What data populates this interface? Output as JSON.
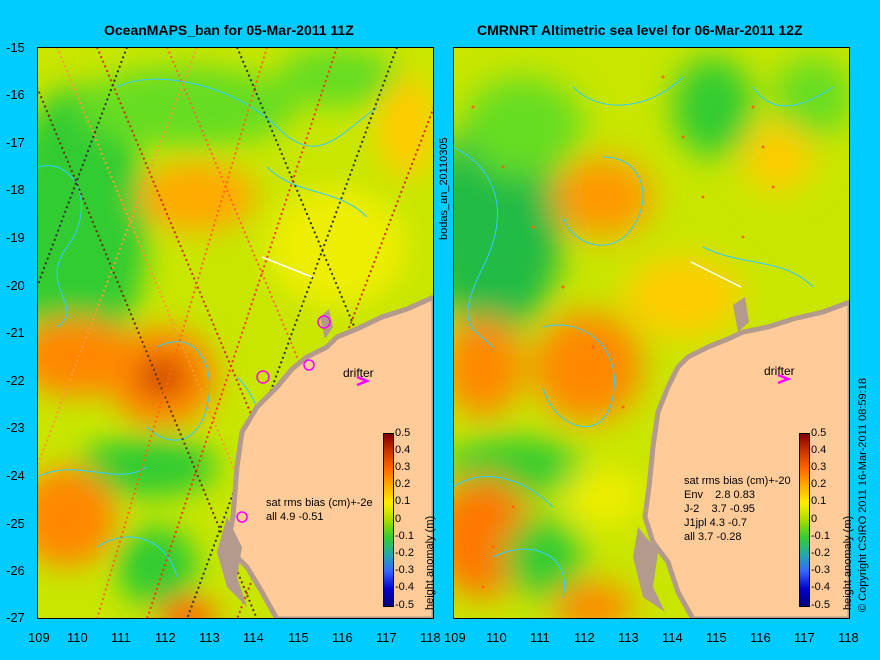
{
  "left_panel": {
    "title": "OceanMAPS_ban for 05-Mar-2011 11Z",
    "side_label": "bodas_an_20110305",
    "stats": [
      "sat rms bias (cm)+-2e",
      "all 4.9 -0.51"
    ],
    "drifter_label": "drifter",
    "x_ticks": [
      "109",
      "110",
      "111",
      "112",
      "113",
      "114",
      "115",
      "116",
      "117",
      "118"
    ],
    "y_ticks": [
      "-15",
      "-16",
      "-17",
      "-18",
      "-19",
      "-20",
      "-21",
      "-22",
      "-23",
      "-24",
      "-25",
      "-26",
      "-27"
    ],
    "colorbar": {
      "ticks": [
        "0.5",
        "0.4",
        "0.3",
        "0.2",
        "0.1",
        "0",
        "-0.1",
        "-0.2",
        "-0.3",
        "-0.4",
        "-0.5"
      ],
      "label": "height anomaly (m)"
    }
  },
  "right_panel": {
    "title": "CMRNRT Altimetric sea level  for 06-Mar-2011 12Z",
    "stats": [
      "sat rms bias (cm)+-20",
      "Env    2.8 0.83",
      "J-2    3.7 -0.95",
      "J1jpl 4.3 -0.7",
      "all 3.7 -0.28"
    ],
    "drifter_label": "drifter",
    "x_ticks": [
      "109",
      "110",
      "111",
      "112",
      "113",
      "114",
      "115",
      "116",
      "117",
      "118"
    ],
    "colorbar": {
      "ticks": [
        "0.5",
        "0.4",
        "0.3",
        "0.2",
        "0.1",
        "0",
        "-0.1",
        "-0.2",
        "-0.3",
        "-0.4",
        "-0.5"
      ],
      "label": "height anomaly (m)"
    }
  },
  "copyright": "© Copyright CSIRO 2011    16-Mar-2011 08:59:18",
  "colors": {
    "background": "#00ccff",
    "land": "#ffcc99",
    "coast_shelf": "#b49a8c",
    "contour": "#33ccff",
    "drifter": "#ff00ff"
  }
}
